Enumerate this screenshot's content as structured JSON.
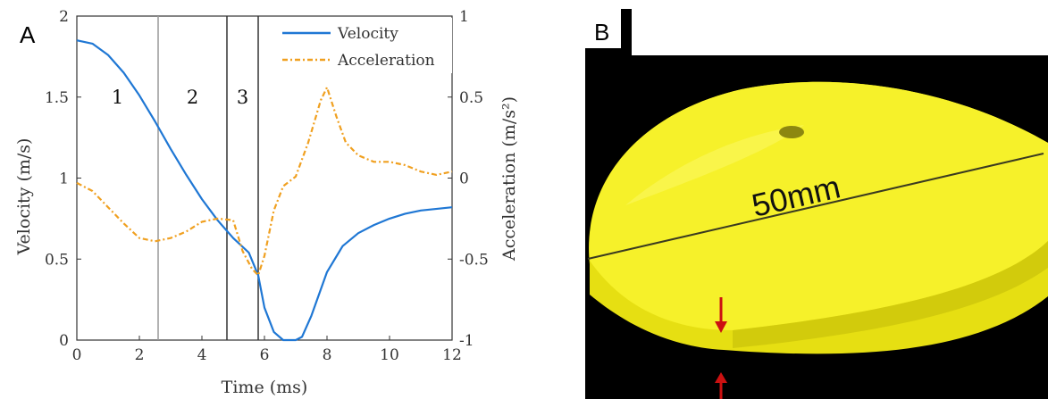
{
  "panel_a_label": "A",
  "panel_b_label": "B",
  "image_b": {
    "measurement_label": "50mm",
    "colors": {
      "background": "#000000",
      "object": "#f4ef1f",
      "object_shadow": "#c9c20a",
      "arrow": "#cc1111",
      "line": "#333333"
    }
  },
  "chart_data": {
    "type": "line",
    "xlabel": "Time (ms)",
    "ylabel": "Velocity (m/s)",
    "y2label": "Acceleration (m/s²)",
    "xlim": [
      0,
      12
    ],
    "ylim": [
      0,
      2
    ],
    "y2lim": [
      -1,
      1
    ],
    "xticks": [
      0,
      2,
      4,
      6,
      8,
      10,
      12
    ],
    "yticks": [
      0,
      0.5,
      1,
      1.5,
      2
    ],
    "y2ticks": [
      -1,
      -0.5,
      0,
      0.5,
      1
    ],
    "xtick_labels": [
      "0",
      "2",
      "4",
      "6",
      "8",
      "10",
      "12"
    ],
    "ytick_labels": [
      "0",
      "0.5",
      "1",
      "1.5",
      "2"
    ],
    "y2tick_labels": [
      "-1",
      "-0.5",
      "0",
      "0.5",
      "1"
    ],
    "legend_position": "top-right",
    "series": [
      {
        "name": "Velocity",
        "axis": "left",
        "color": "#1f77d4",
        "style": "solid",
        "x": [
          0,
          0.5,
          1,
          1.5,
          2,
          2.5,
          3,
          3.5,
          4,
          4.5,
          5,
          5.5,
          5.8,
          6,
          6.3,
          6.6,
          7,
          7.2,
          7.5,
          8,
          8.5,
          9,
          9.5,
          10,
          10.5,
          11,
          12
        ],
        "y": [
          1.85,
          1.83,
          1.76,
          1.65,
          1.51,
          1.35,
          1.18,
          1.02,
          0.87,
          0.74,
          0.63,
          0.54,
          0.4,
          0.2,
          0.05,
          0,
          0,
          0.02,
          0.15,
          0.42,
          0.58,
          0.66,
          0.71,
          0.75,
          0.78,
          0.8,
          0.82
        ]
      },
      {
        "name": "Acceleration",
        "axis": "right",
        "color": "#f0a020",
        "style": "dashdot",
        "x": [
          0,
          0.5,
          1,
          1.5,
          2,
          2.5,
          3,
          3.5,
          4,
          4.5,
          5,
          5.3,
          5.6,
          5.8,
          6,
          6.3,
          6.6,
          7,
          7.4,
          7.8,
          8,
          8.3,
          8.6,
          9,
          9.5,
          10,
          10.5,
          11,
          11.5,
          12
        ],
        "y": [
          -0.03,
          -0.08,
          -0.18,
          -0.28,
          -0.37,
          -0.39,
          -0.37,
          -0.33,
          -0.27,
          -0.25,
          -0.26,
          -0.45,
          -0.56,
          -0.6,
          -0.48,
          -0.2,
          -0.05,
          0.01,
          0.22,
          0.48,
          0.56,
          0.38,
          0.22,
          0.14,
          0.1,
          0.1,
          0.08,
          0.04,
          0.02,
          0.04
        ]
      }
    ],
    "vertical_lines": [
      {
        "x": 2.6,
        "color": "#999999"
      },
      {
        "x": 4.8,
        "color": "#333333"
      },
      {
        "x": 5.8,
        "color": "#333333"
      }
    ],
    "region_labels": [
      {
        "text": "1",
        "x": 1.3,
        "y": 1.5
      },
      {
        "text": "2",
        "x": 3.7,
        "y": 1.5
      },
      {
        "text": "3",
        "x": 5.3,
        "y": 1.5
      }
    ]
  }
}
